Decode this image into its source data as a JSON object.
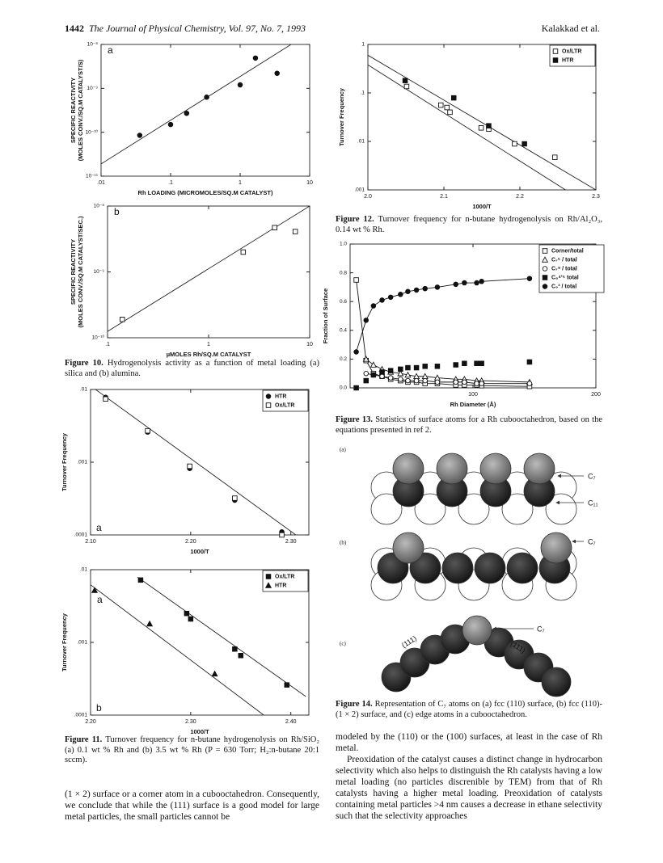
{
  "header": {
    "page": "1442",
    "journal": "The Journal of Physical Chemistry, Vol. 97, No. 7, 1993",
    "authors": "Kalakkad et al."
  },
  "chart_data": [
    {
      "type": "scatter",
      "xlog": true,
      "ylog": true,
      "panel_labels": [
        "a"
      ],
      "ylabel": [
        "SPECIFIC REACTIVITY",
        "(MOLES CONV./SQ.M CATALYST/S)"
      ],
      "xlabel": "Rh LOADING (MICROMOLES/SQ.M CATALYST)",
      "xlim": [
        0.01,
        10
      ],
      "ylim": [
        1e-11,
        1e-08
      ],
      "xticks": [
        {
          "value": 0.01,
          "label": ".01"
        },
        {
          "value": 0.1,
          "label": ".1"
        },
        1,
        10
      ],
      "yticks": [
        {
          "value": 1e-11,
          "label": "10⁻¹¹"
        },
        {
          "value": 1e-10,
          "label": "10⁻¹⁰"
        },
        {
          "value": 1e-09,
          "label": "10⁻⁹"
        },
        {
          "value": 1e-08,
          "label": "10⁻⁸"
        }
      ],
      "series": [
        {
          "marker": "filled-circle",
          "color": "#111111",
          "x": [
            0.036,
            0.1,
            0.17,
            0.33,
            1.0,
            1.66,
            3.4
          ],
          "values": [
            8.5e-11,
            1.5e-10,
            2.7e-10,
            6.3e-10,
            1.2e-09,
            4.9e-09,
            2.2e-09
          ]
        }
      ],
      "fits": [
        {
          "x": [
            0.01,
            5.4
          ],
          "y": [
            1.9e-11,
            1e-08
          ]
        }
      ]
    },
    {
      "type": "scatter",
      "xlog": true,
      "ylog": true,
      "panel_labels": [
        "b"
      ],
      "ylabel": [
        "SPECIFIC REACTIVITY",
        "(MOLES CONV./SQ.M CATALYST/SEC.)"
      ],
      "xlabel": "µMOLES Rh/SQ.M CATALYST",
      "xlim": [
        0.1,
        10
      ],
      "ylim": [
        1e-10,
        1e-08
      ],
      "xticks": [
        {
          "value": 0.1,
          "label": ".1"
        },
        1,
        10
      ],
      "yticks": [
        {
          "value": 1e-10,
          "label": "10⁻¹⁰"
        },
        {
          "value": 1e-09,
          "label": "10⁻⁹"
        },
        {
          "value": 1e-08,
          "label": "10⁻⁸"
        }
      ],
      "series": [
        {
          "marker": "open-square",
          "color": "#111111",
          "x": [
            0.14,
            2.2,
            4.5,
            7.2
          ],
          "values": [
            1.9e-10,
            2e-09,
            4.7e-09,
            4.1e-09
          ]
        }
      ],
      "fits": [
        {
          "x": [
            0.1,
            10
          ],
          "y": [
            1.25e-10,
            1e-08
          ]
        }
      ]
    },
    {
      "type": "scatter",
      "xlog": false,
      "ylog": true,
      "panel_labels": [
        "a"
      ],
      "legend": "upper right",
      "ylabel": [
        "Turnover Frequency"
      ],
      "xlabel": "1000/T",
      "xlim": [
        2.1,
        2.318
      ],
      "ylim": [
        0.0001,
        0.01
      ],
      "xticks": [
        {
          "value": 2.1,
          "label": "2.10"
        },
        {
          "value": 2.2,
          "label": "2.20"
        },
        {
          "value": 2.3,
          "label": "2.30"
        }
      ],
      "yticks": [
        {
          "value": 0.0001,
          "label": ".0001"
        },
        {
          "value": 0.001,
          "label": ".001"
        },
        {
          "value": 0.01,
          "label": ".01"
        }
      ],
      "series": [
        {
          "name": "HTR",
          "marker": "filled-circle",
          "color": "#111111",
          "x": [
            2.115,
            2.157,
            2.199,
            2.244,
            2.291
          ],
          "values": [
            0.0078,
            0.0026,
            0.00082,
            0.0003,
            0.00011
          ]
        },
        {
          "name": "Ox/LTR",
          "marker": "open-square",
          "color": "#111111",
          "x": [
            2.115,
            2.157,
            2.199,
            2.244,
            2.291
          ],
          "values": [
            0.0074,
            0.0027,
            0.00088,
            0.00032,
            0.0001
          ]
        }
      ],
      "fits": [
        {
          "x": [
            2.105,
            2.305
          ],
          "y": [
            0.01,
            0.0001
          ]
        }
      ]
    },
    {
      "type": "scatter",
      "xlog": false,
      "ylog": true,
      "panel_labels": [
        "a",
        "b"
      ],
      "legend": "upper right",
      "ylabel": [
        "Turnover Frequency"
      ],
      "xlabel": "1000/T",
      "xlim": [
        2.2,
        2.418
      ],
      "ylim": [
        0.0001,
        0.01
      ],
      "xticks": [
        {
          "value": 2.2,
          "label": "2.20"
        },
        {
          "value": 2.3,
          "label": "2.30"
        },
        {
          "value": 2.4,
          "label": "2.40"
        }
      ],
      "yticks": [
        {
          "value": 0.0001,
          "label": ".0001"
        },
        {
          "value": 0.001,
          "label": ".001"
        },
        {
          "value": 0.01,
          "label": ".01"
        }
      ],
      "series": [
        {
          "name": "Ox/LTR",
          "marker": "filled-square",
          "color": "#111111",
          "x": [
            2.25,
            2.296,
            2.3,
            2.344,
            2.35,
            2.396
          ],
          "values": [
            0.0072,
            0.0025,
            0.0021,
            0.00081,
            0.00066,
            0.00026
          ]
        },
        {
          "name": "HTR",
          "marker": "filled-triangle",
          "color": "#111111",
          "x": [
            2.204,
            2.259,
            2.324
          ],
          "values": [
            0.0052,
            0.0018,
            0.00037
          ]
        }
      ],
      "fits": [
        {
          "x": [
            2.247,
            2.415
          ],
          "y": [
            0.0079,
            0.00018
          ]
        },
        {
          "x": [
            2.2,
            2.373
          ],
          "y": [
            0.0062,
            0.0001
          ]
        }
      ]
    },
    {
      "type": "scatter",
      "xlog": false,
      "ylog": true,
      "legend": "upper right",
      "ylabel": [
        "Turnover Frequency"
      ],
      "xlabel": "1000/T",
      "xlim": [
        2.0,
        2.3
      ],
      "ylim": [
        0.001,
        1
      ],
      "xticks": [
        {
          "value": 2.0,
          "label": "2.0"
        },
        2.1,
        2.2,
        2.3
      ],
      "yticks": [
        {
          "value": 0.001,
          "label": ".001"
        },
        {
          "value": 0.01,
          "label": ".01"
        },
        {
          "value": 0.1,
          "label": ".1"
        },
        1
      ],
      "series": [
        {
          "name": "Ox/LTR",
          "marker": "open-square",
          "color": "#111111",
          "x": [
            2.051,
            2.096,
            2.104,
            2.108,
            2.149,
            2.159,
            2.193,
            2.246
          ],
          "values": [
            0.136,
            0.056,
            0.05,
            0.04,
            0.019,
            0.018,
            0.0089,
            0.0047
          ]
        },
        {
          "name": "HTR",
          "marker": "filled-square",
          "color": "#111111",
          "x": [
            2.049,
            2.113,
            2.159,
            2.206
          ],
          "values": [
            0.18,
            0.079,
            0.021,
            0.0089
          ]
        }
      ],
      "fits": [
        {
          "x": [
            2.0,
            2.3
          ],
          "y": [
            0.6,
            0.001
          ]
        },
        {
          "x": [
            2.0,
            2.26
          ],
          "y": [
            0.38,
            0.001
          ]
        }
      ]
    },
    {
      "type": "scatter",
      "xlog": false,
      "ylog": false,
      "legend": "upper right",
      "ylabel": [
        "Fraction of Surface"
      ],
      "xlabel": "Rh Diameter (Å)",
      "xlim": [
        0,
        200
      ],
      "ylim": [
        0,
        1
      ],
      "xticks": [
        100,
        200
      ],
      "yticks": [
        {
          "value": 0,
          "label": "0.0"
        },
        0.2,
        0.4,
        0.6,
        0.8,
        {
          "value": 1,
          "label": "1.0"
        }
      ],
      "x": [
        5,
        13,
        19,
        26,
        33,
        41,
        47,
        54,
        61,
        71,
        86,
        93,
        103,
        107,
        146
      ],
      "series": [
        {
          "name": "Corner/total",
          "marker": "open-square",
          "color": "#111111",
          "line": true,
          "values": [
            0.75,
            0.19,
            0.1,
            0.08,
            0.06,
            0.05,
            0.04,
            0.04,
            0.03,
            0.03,
            0.02,
            0.02,
            0.02,
            0.015,
            0.01
          ]
        },
        {
          "name": "C₇⁵ / total",
          "marker": "open-triangle",
          "color": "#111111",
          "line": true,
          "values": [
            null,
            0.2,
            0.16,
            0.13,
            0.11,
            0.1,
            0.09,
            0.08,
            0.08,
            0.07,
            0.06,
            0.06,
            0.05,
            0.05,
            0.04
          ]
        },
        {
          "name": "C₇⁹ / total",
          "marker": "open-circle",
          "color": "#111111",
          "line": true,
          "values": [
            null,
            0.1,
            0.09,
            0.08,
            0.07,
            0.06,
            0.05,
            0.05,
            0.05,
            0.04,
            0.04,
            0.04,
            0.03,
            0.03,
            0.03
          ]
        },
        {
          "name": "C₈⁴ʼ⁵ total",
          "marker": "filled-square",
          "color": "#111111",
          "line": false,
          "values": [
            0,
            0.05,
            0.09,
            0.11,
            0.12,
            0.13,
            0.14,
            0.14,
            0.15,
            0.15,
            0.16,
            0.17,
            0.17,
            0.17,
            0.18
          ]
        },
        {
          "name": "C₉³ / total",
          "marker": "filled-circle",
          "color": "#111111",
          "line": true,
          "values": [
            0.25,
            0.47,
            0.57,
            0.61,
            0.63,
            0.65,
            0.67,
            0.68,
            0.69,
            0.7,
            0.72,
            0.73,
            0.73,
            0.74,
            0.76
          ]
        }
      ]
    }
  ],
  "figure14": {
    "panels": [
      "(a)",
      "(b)",
      "(c)"
    ],
    "c7": "C₇",
    "c11": "C₁₁",
    "face": "(111)"
  },
  "captions": {
    "fig10": {
      "label": "Figure 10.",
      "text": "Hydrogenolysis activity as a function of metal loading (a) silica and (b) alumina."
    },
    "fig11": {
      "label": "Figure 11.",
      "text": "Turnover frequency for n-butane hydrogenolysis on Rh/SiO₂ (a) 0.1 wt % Rh and (b) 3.5 wt % Rh (P = 630 Torr; H₂:n-butane 20:1 sccm)."
    },
    "fig12": {
      "label": "Figure 12.",
      "text": "Turnover frequency for n-butane hydrogenolysis on Rh/Al₂O₃, 0.14 wt % Rh."
    },
    "fig13": {
      "label": "Figure 13.",
      "text": "Statistics of surface atoms for a Rh cubooctahedron, based on the equations presented in ref 2."
    },
    "fig14": {
      "label": "Figure 14.",
      "text": "Representation of C₇ atoms on (a) fcc (110) surface, (b) fcc (110)-(1 × 2) surface, and (c) edge atoms in a cubooctahedron."
    }
  },
  "body": {
    "left": "(1 × 2) surface or a corner atom in a cubooctahedron. Consequently, we conclude that while the (111) surface is a good model for large metal particles, the small particles cannot be",
    "right": [
      "modeled by the (110) or the (100) surfaces, at least in the case of Rh metal.",
      "Preoxidation of the catalyst causes a distinct change in hydrocarbon selectivity which also helps to distinguish the Rh catalysts having a low metal loading (no particles discrenible by TEM) from that of Rh catalysts having a higher metal loading. Preoxidation of catalysts containing metal particles >4 nm causes a decrease in ethane selectivity such that the selectivity approaches"
    ]
  }
}
